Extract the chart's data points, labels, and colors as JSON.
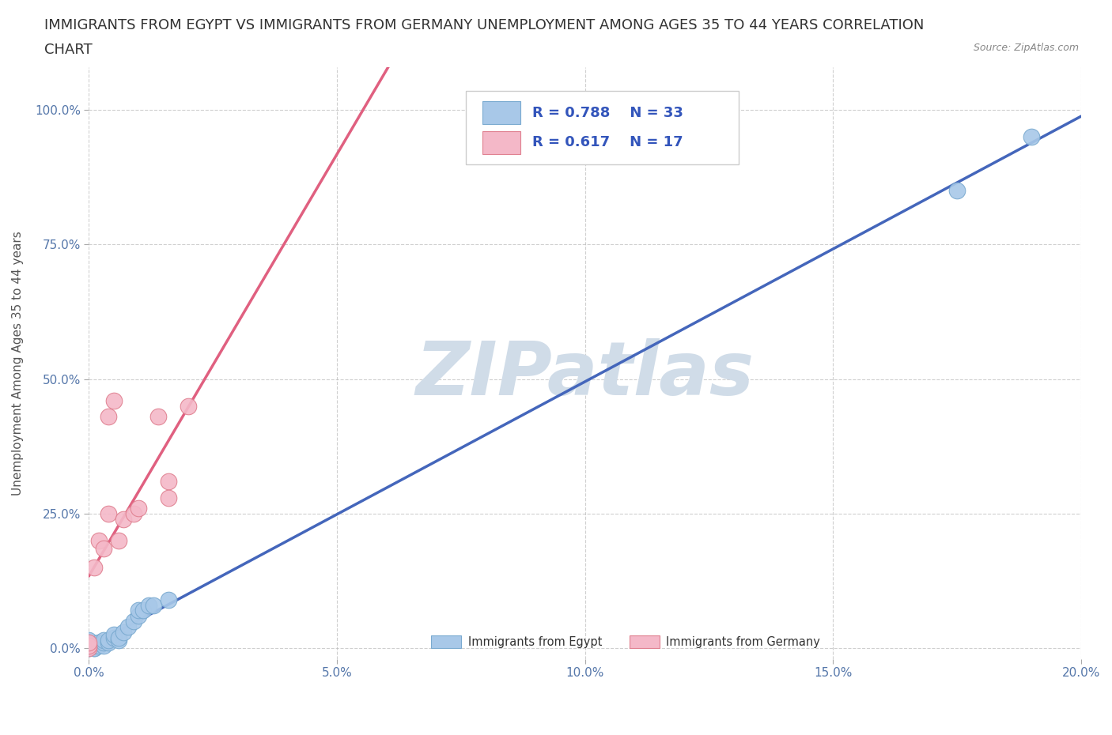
{
  "title_line1": "IMMIGRANTS FROM EGYPT VS IMMIGRANTS FROM GERMANY UNEMPLOYMENT AMONG AGES 35 TO 44 YEARS CORRELATION",
  "title_line2": "CHART",
  "source": "Source: ZipAtlas.com",
  "ylabel": "Unemployment Among Ages 35 to 44 years",
  "xlim": [
    0.0,
    0.2
  ],
  "ylim": [
    -0.02,
    1.08
  ],
  "xtick_labels": [
    "0.0%",
    "5.0%",
    "10.0%",
    "15.0%",
    "20.0%"
  ],
  "xtick_values": [
    0.0,
    0.05,
    0.1,
    0.15,
    0.2
  ],
  "ytick_labels": [
    "0.0%",
    "25.0%",
    "50.0%",
    "75.0%",
    "100.0%"
  ],
  "ytick_values": [
    0.0,
    0.25,
    0.5,
    0.75,
    1.0
  ],
  "egypt_color": "#a8c8e8",
  "egypt_edge_color": "#7aaad0",
  "germany_color": "#f4b8c8",
  "germany_edge_color": "#e08090",
  "egypt_line_color": "#4466bb",
  "germany_line_color": "#e06080",
  "egypt_r": 0.788,
  "egypt_n": 33,
  "germany_r": 0.617,
  "germany_n": 17,
  "egypt_x": [
    0.0,
    0.0,
    0.0,
    0.0,
    0.0,
    0.0,
    0.0,
    0.001,
    0.001,
    0.001,
    0.002,
    0.002,
    0.002,
    0.003,
    0.003,
    0.003,
    0.004,
    0.004,
    0.005,
    0.005,
    0.006,
    0.006,
    0.007,
    0.008,
    0.009,
    0.01,
    0.01,
    0.011,
    0.012,
    0.013,
    0.016,
    0.175,
    0.19
  ],
  "egypt_y": [
    0.0,
    0.0,
    0.005,
    0.005,
    0.01,
    0.01,
    0.015,
    0.0,
    0.0,
    0.005,
    0.005,
    0.01,
    0.01,
    0.005,
    0.01,
    0.015,
    0.01,
    0.015,
    0.02,
    0.025,
    0.015,
    0.02,
    0.03,
    0.04,
    0.05,
    0.06,
    0.07,
    0.07,
    0.08,
    0.08,
    0.09,
    0.85,
    0.95
  ],
  "germany_x": [
    0.0,
    0.0,
    0.0,
    0.001,
    0.002,
    0.003,
    0.004,
    0.004,
    0.005,
    0.006,
    0.007,
    0.009,
    0.01,
    0.014,
    0.016,
    0.016,
    0.02
  ],
  "germany_y": [
    0.0,
    0.005,
    0.01,
    0.15,
    0.2,
    0.185,
    0.43,
    0.25,
    0.46,
    0.2,
    0.24,
    0.25,
    0.26,
    0.43,
    0.31,
    0.28,
    0.45
  ],
  "watermark": "ZIPatlas",
  "watermark_color": "#d0dce8",
  "background_color": "#ffffff",
  "grid_color": "#bbbbbb",
  "title_fontsize": 13,
  "axis_label_fontsize": 11,
  "tick_fontsize": 11,
  "legend_fontsize": 13
}
